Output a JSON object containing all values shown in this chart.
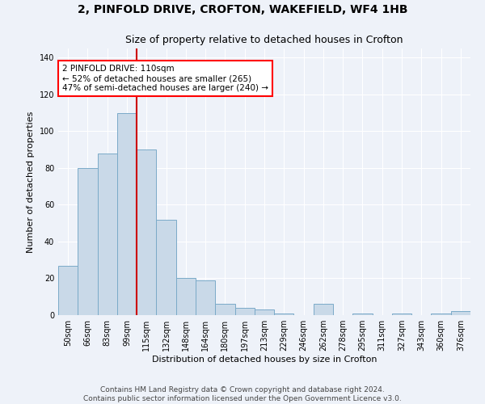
{
  "title": "2, PINFOLD DRIVE, CROFTON, WAKEFIELD, WF4 1HB",
  "subtitle": "Size of property relative to detached houses in Crofton",
  "xlabel": "Distribution of detached houses by size in Crofton",
  "ylabel": "Number of detached properties",
  "footer_line1": "Contains HM Land Registry data © Crown copyright and database right 2024.",
  "footer_line2": "Contains public sector information licensed under the Open Government Licence v3.0.",
  "bin_labels": [
    "50sqm",
    "66sqm",
    "83sqm",
    "99sqm",
    "115sqm",
    "132sqm",
    "148sqm",
    "164sqm",
    "180sqm",
    "197sqm",
    "213sqm",
    "229sqm",
    "246sqm",
    "262sqm",
    "278sqm",
    "295sqm",
    "311sqm",
    "327sqm",
    "343sqm",
    "360sqm",
    "376sqm"
  ],
  "bar_values": [
    27,
    80,
    88,
    110,
    90,
    52,
    20,
    19,
    6,
    4,
    3,
    1,
    0,
    6,
    0,
    1,
    0,
    1,
    0,
    1,
    2
  ],
  "bar_color": "#c9d9e8",
  "bar_edge_color": "#7aaac8",
  "red_line_bin_index": 4,
  "annotation_text": "2 PINFOLD DRIVE: 110sqm\n← 52% of detached houses are smaller (265)\n47% of semi-detached houses are larger (240) →",
  "annotation_box_color": "white",
  "annotation_box_edge_color": "red",
  "red_line_color": "#cc0000",
  "ylim": [
    0,
    145
  ],
  "yticks": [
    0,
    20,
    40,
    60,
    80,
    100,
    120,
    140
  ],
  "background_color": "#eef2f9",
  "grid_color": "#ffffff",
  "title_fontsize": 10,
  "subtitle_fontsize": 9,
  "axis_label_fontsize": 8,
  "tick_fontsize": 7,
  "footer_fontsize": 6.5,
  "annotation_fontsize": 7.5
}
